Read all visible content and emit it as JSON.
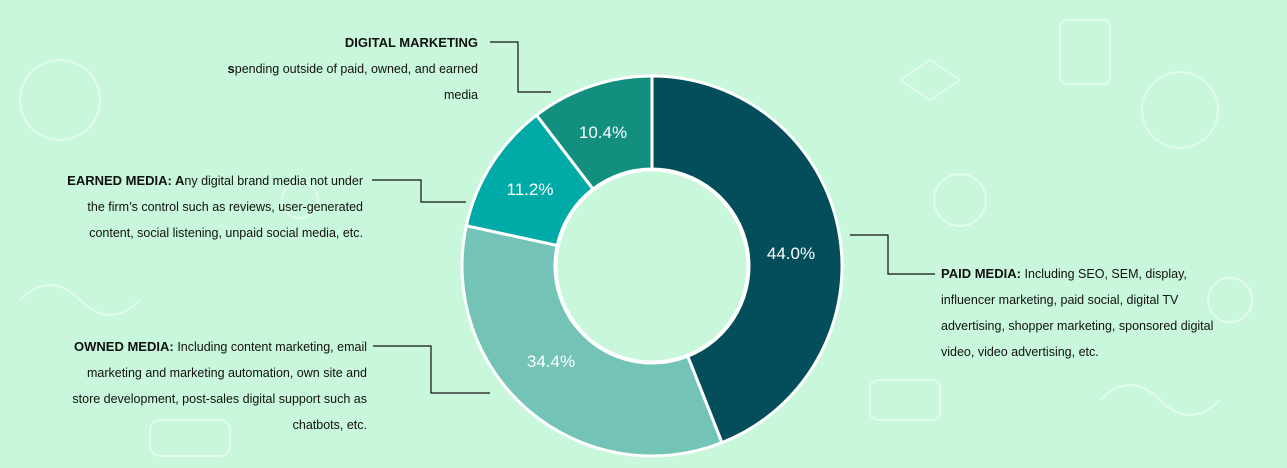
{
  "colors": {
    "background": "#c8f7dc",
    "paid": "#034e5a",
    "owned": "#73c4b7",
    "earned": "#00aaa7",
    "digital": "#138f80",
    "leader": "#111111"
  },
  "chart_data": {
    "type": "pie",
    "donut": true,
    "title": "",
    "slices": [
      {
        "key": "paid",
        "label": "PAID MEDIA",
        "value": 44.0,
        "display": "44.0%"
      },
      {
        "key": "owned",
        "label": "OWNED MEDIA",
        "value": 34.4,
        "display": "34.4%"
      },
      {
        "key": "earned",
        "label": "EARNED MEDIA",
        "value": 11.2,
        "display": "11.2%"
      },
      {
        "key": "digital",
        "label": "DIGITAL MARKETING",
        "value": 10.4,
        "display": "10.4%"
      }
    ]
  },
  "labels": {
    "digital": {
      "head": "DIGITAL MARKETING",
      "first_letter": "s",
      "rest": "pending outside of paid, owned, and earned media"
    },
    "earned": {
      "head": "EARNED MEDIA: ",
      "first_letter": "A",
      "rest": "ny digital brand media not under the firm’s control such as reviews, user-generated content, social listening, unpaid social media, etc."
    },
    "owned": {
      "head": "OWNED MEDIA: ",
      "rest": "Including content marketing, email marketing and marketing automation, own site and store development, post-sales digital support such as chatbots, etc."
    },
    "paid": {
      "head": "PAID MEDIA: ",
      "rest": "Including SEO, SEM, display, influencer marketing, paid social, digital TV advertising, shopper marketing, sponsored digital video, video advertising, etc."
    }
  }
}
